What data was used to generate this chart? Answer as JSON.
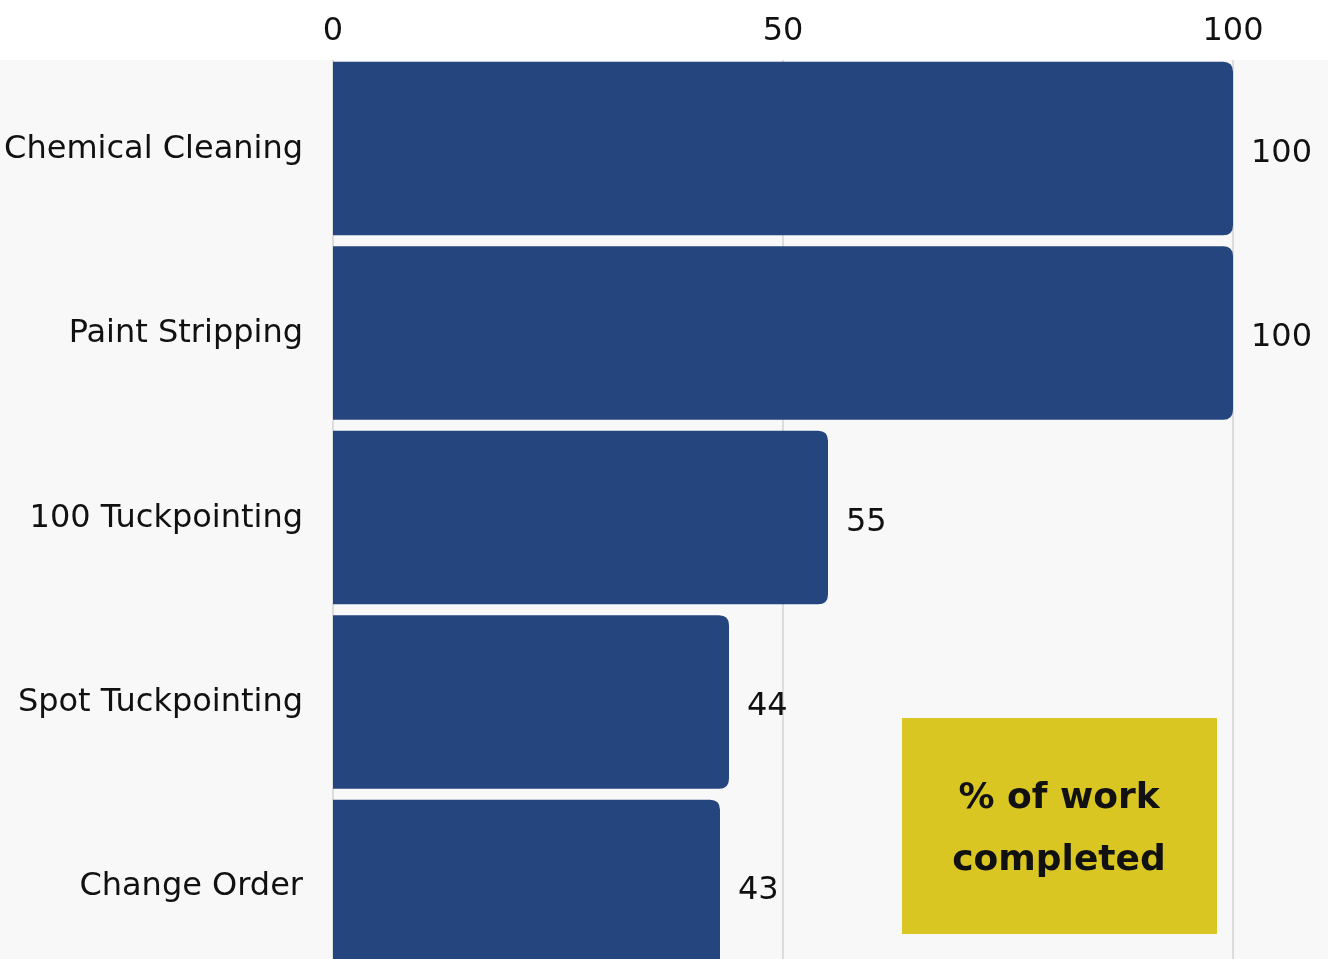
{
  "chart_data": {
    "type": "bar",
    "orientation": "horizontal",
    "categories": [
      "Chemical Cleaning",
      "Paint Stripping",
      "100 Tuckpointing",
      "Spot Tuckpointing",
      "Change Order"
    ],
    "values": [
      100,
      100,
      55,
      44,
      43
    ],
    "color": "#25457f",
    "xlim": [
      0,
      100
    ],
    "xticks": [
      0,
      50,
      100
    ],
    "grid": "x",
    "data_labels": true,
    "annotations": [
      "% of work completed"
    ]
  }
}
